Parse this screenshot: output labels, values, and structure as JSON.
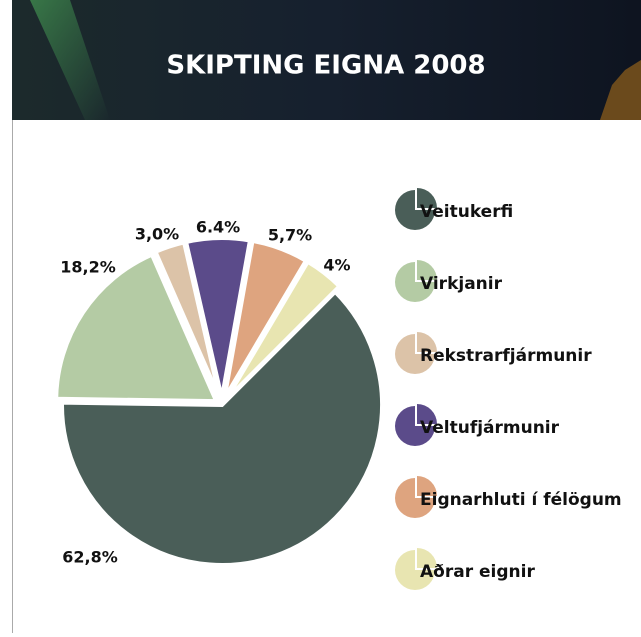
{
  "chart_data": {
    "type": "pie",
    "title": "SKIPTING EIGNA 2008",
    "categories": [
      "Veitukerfi",
      "Virkjanir",
      "Rekstrarfjármunir",
      "Veltufjármunir",
      "Eignarhluti í félögum",
      "Aðrar eignir"
    ],
    "values": [
      62.8,
      18.2,
      3.0,
      6.4,
      5.7,
      4
    ],
    "value_labels": [
      "62,8%",
      "18,2%",
      "3,0%",
      "6.4%",
      "5,7%",
      "4%"
    ],
    "colors": [
      "#4a5e58",
      "#b4cba4",
      "#dcc3a8",
      "#5b4b8a",
      "#dea47f",
      "#e8e5b1"
    ]
  }
}
